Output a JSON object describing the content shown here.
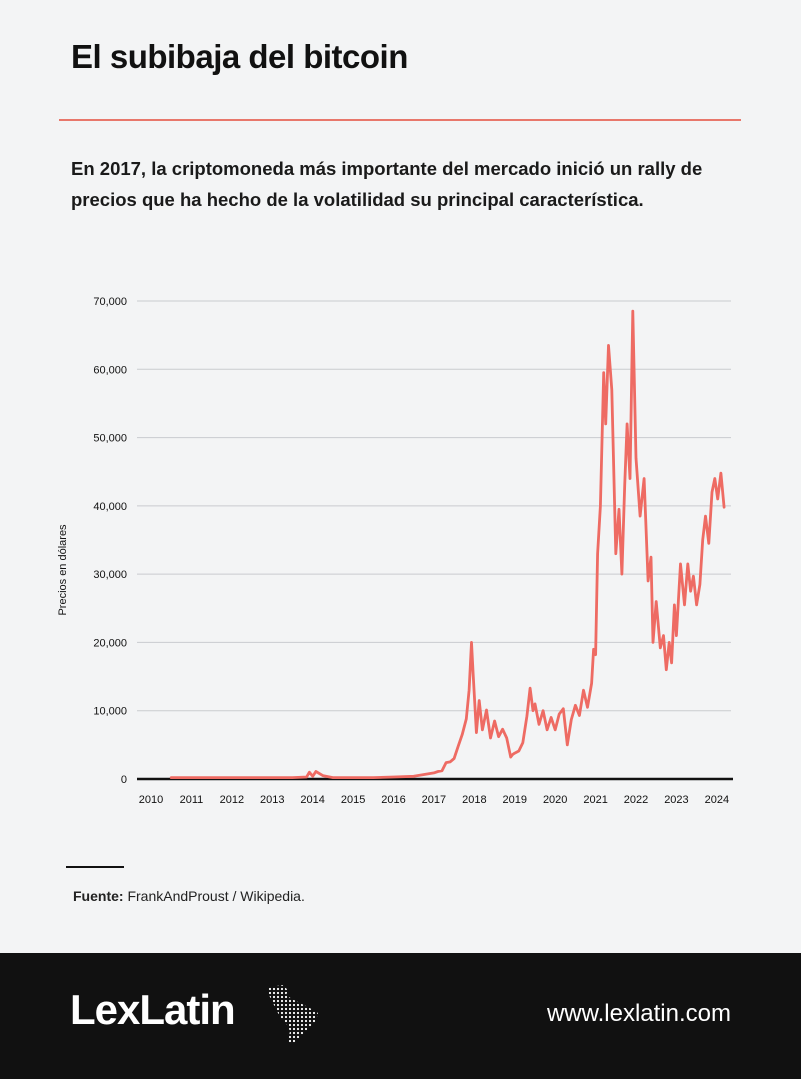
{
  "header": {
    "title": "El subibaja del bitcoin",
    "subtitle": "En 2017, la criptomoneda más importante del mercado inició un rally de precios que ha hecho de la volatilidad su principal característica."
  },
  "colors": {
    "accent": "#e8776b",
    "line": "#ee6b63",
    "footer_bg": "#111111",
    "page_bg": "#f3f4f5"
  },
  "chart_data": {
    "type": "line",
    "title": "",
    "xlabel": "",
    "ylabel": "Precios en dólares",
    "xlim": [
      2010,
      2024.35
    ],
    "ylim": [
      0,
      70000
    ],
    "grid": true,
    "legend": "none",
    "x_ticks": [
      "2010",
      "2011",
      "2012",
      "2013",
      "2014",
      "2015",
      "2016",
      "2017",
      "2018",
      "2019",
      "2020",
      "2021",
      "2022",
      "2023",
      "2024"
    ],
    "y_ticks": [
      "0",
      "10,000",
      "20,000",
      "30,000",
      "40,000",
      "50,000",
      "60,000",
      "70,000"
    ],
    "y_tick_values": [
      0,
      10000,
      20000,
      30000,
      40000,
      50000,
      60000,
      70000
    ],
    "series": [
      {
        "x": [
          2010.5,
          2011.0,
          2011.5,
          2012.0,
          2012.5,
          2013.0,
          2013.5,
          2013.85,
          2013.92,
          2014.0,
          2014.08,
          2014.25,
          2014.5,
          2015.0,
          2015.5,
          2016.0,
          2016.5,
          2017.0,
          2017.1,
          2017.2,
          2017.3,
          2017.4,
          2017.5,
          2017.6,
          2017.7,
          2017.8,
          2017.87,
          2017.93,
          2017.97,
          2018.05,
          2018.12,
          2018.2,
          2018.3,
          2018.4,
          2018.5,
          2018.6,
          2018.7,
          2018.8,
          2018.9,
          2018.95,
          2019.0,
          2019.1,
          2019.2,
          2019.3,
          2019.38,
          2019.45,
          2019.5,
          2019.6,
          2019.7,
          2019.8,
          2019.9,
          2020.0,
          2020.1,
          2020.2,
          2020.3,
          2020.4,
          2020.5,
          2020.6,
          2020.7,
          2020.8,
          2020.9,
          2020.95,
          2021.0,
          2021.05,
          2021.12,
          2021.2,
          2021.25,
          2021.32,
          2021.4,
          2021.5,
          2021.58,
          2021.65,
          2021.72,
          2021.78,
          2021.85,
          2021.92,
          2022.0,
          2022.1,
          2022.2,
          2022.3,
          2022.37,
          2022.42,
          2022.5,
          2022.6,
          2022.68,
          2022.75,
          2022.82,
          2022.88,
          2022.95,
          2023.0,
          2023.1,
          2023.2,
          2023.28,
          2023.35,
          2023.42,
          2023.5,
          2023.58,
          2023.65,
          2023.72,
          2023.8,
          2023.88,
          2023.95,
          2024.02,
          2024.1,
          2024.18
        ],
        "y": [
          200,
          200,
          200,
          200,
          200,
          200,
          200,
          300,
          1000,
          400,
          1100,
          500,
          200,
          200,
          200,
          300,
          400,
          900,
          1100,
          1200,
          2400,
          2500,
          3000,
          4800,
          6500,
          8800,
          13000,
          20000,
          15500,
          6800,
          11500,
          7200,
          10100,
          6000,
          8500,
          6200,
          7300,
          6000,
          3200,
          3600,
          3800,
          4100,
          5300,
          9200,
          13300,
          10000,
          11000,
          8000,
          10000,
          7200,
          9000,
          7200,
          9500,
          10300,
          5000,
          8700,
          10800,
          9300,
          13000,
          10500,
          14000,
          19000,
          18200,
          33000,
          40000,
          59500,
          52000,
          63500,
          57000,
          33000,
          39500,
          30000,
          43000,
          52000,
          44000,
          68500,
          47000,
          38500,
          44000,
          29000,
          32500,
          20000,
          26000,
          19200,
          21000,
          16000,
          20000,
          17000,
          25500,
          21000,
          31500,
          25500,
          31500,
          27500,
          29700,
          25500,
          28500,
          35000,
          38500,
          34500,
          42000,
          44000,
          41000,
          44800,
          39800
        ]
      }
    ]
  },
  "source": {
    "label": "Fuente:",
    "text": " FrankAndProust / Wikipedia."
  },
  "footer": {
    "brand": "LexLatin",
    "url": "www.lexlatin.com",
    "map_icon": "latin-america-map-icon"
  }
}
